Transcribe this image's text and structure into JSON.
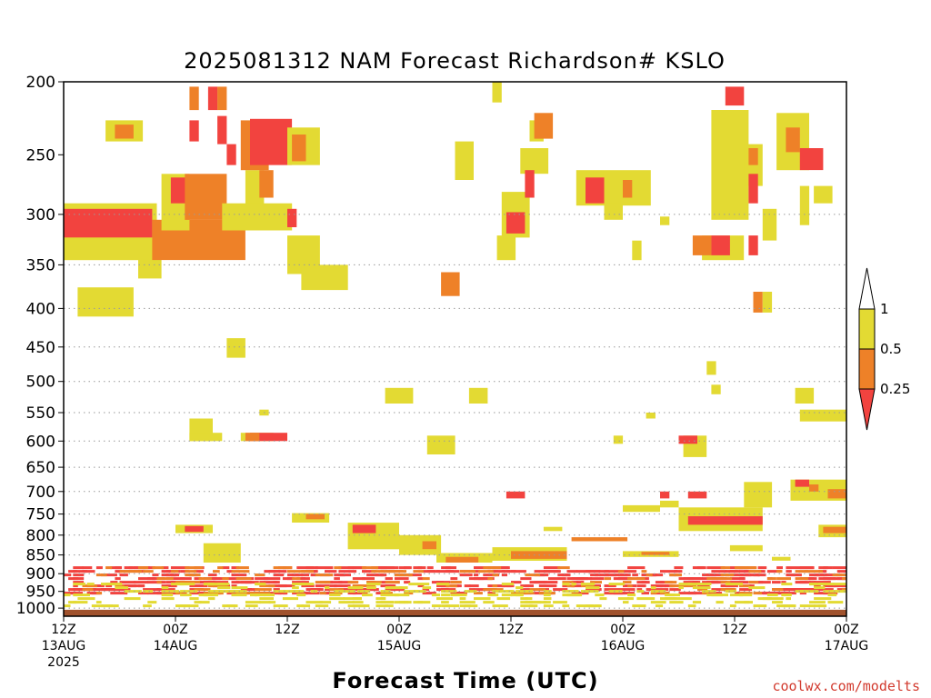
{
  "chart_data": {
    "type": "heatmap",
    "title": "2025081312 NAM Forecast Richardson# KSLO",
    "xlabel": "Forecast Time (UTC)",
    "ylabel": "",
    "credit": "coolwx.com/modelts",
    "y_axis": {
      "scale": "pressure (hPa), reversed",
      "range": [
        1025,
        200
      ],
      "grid": "dotted at each 50 hPa from 300"
    },
    "y_ticks": [
      200,
      250,
      300,
      350,
      400,
      450,
      500,
      550,
      600,
      650,
      700,
      750,
      800,
      850,
      900,
      950,
      1000
    ],
    "x_axis": {
      "unit": "forecast hour",
      "range": [
        0,
        84
      ],
      "start": "2025-08-13 12Z"
    },
    "x_ticks": [
      {
        "h": 0,
        "line1": "12Z",
        "line2": "13AUG",
        "line3": "2025"
      },
      {
        "h": 12,
        "line1": "00Z",
        "line2": "14AUG",
        "line3": ""
      },
      {
        "h": 24,
        "line1": "12Z",
        "line2": "",
        "line3": ""
      },
      {
        "h": 36,
        "line1": "00Z",
        "line2": "15AUG",
        "line3": ""
      },
      {
        "h": 48,
        "line1": "12Z",
        "line2": "",
        "line3": ""
      },
      {
        "h": 60,
        "line1": "00Z",
        "line2": "16AUG",
        "line3": ""
      },
      {
        "h": 72,
        "line1": "12Z",
        "line2": "",
        "line3": ""
      },
      {
        "h": 84,
        "line1": "00Z",
        "line2": "17AUG",
        "line3": ""
      }
    ],
    "legend": {
      "placement": "right",
      "bins": [
        {
          "range": "< 0.25",
          "color": "#f2433f"
        },
        {
          "range": "0.25 - 0.5",
          "color": "#ee8128"
        },
        {
          "range": "0.5 - 1",
          "color": "#e3da33"
        },
        {
          "range": "> 1",
          "color": "#ffffff"
        }
      ],
      "labels": [
        "1",
        "0.5",
        "0.25"
      ]
    },
    "colors": {
      "low": "#f2433f",
      "mid": "#ee8128",
      "high": "#e3da33",
      "ground": "#a0522d"
    },
    "ground_below_hPa": 1005,
    "regions": [
      {
        "cat": "high",
        "h": [
          0,
          10
        ],
        "p": [
          290,
          345
        ]
      },
      {
        "cat": "low",
        "h": [
          0,
          9.5
        ],
        "p": [
          295,
          322
        ]
      },
      {
        "cat": "high",
        "h": [
          1.5,
          7.5
        ],
        "p": [
          375,
          410
        ]
      },
      {
        "cat": "high",
        "h": [
          8,
          10.5
        ],
        "p": [
          342,
          365
        ]
      },
      {
        "cat": "mid",
        "h": [
          9.5,
          19.5
        ],
        "p": [
          305,
          345
        ]
      },
      {
        "cat": "high",
        "h": [
          10.5,
          13.5
        ],
        "p": [
          265,
          315
        ]
      },
      {
        "cat": "low",
        "h": [
          11.5,
          13.5
        ],
        "p": [
          268,
          290
        ]
      },
      {
        "cat": "mid",
        "h": [
          13,
          17.5
        ],
        "p": [
          265,
          305
        ]
      },
      {
        "cat": "high",
        "h": [
          4.5,
          8.5
        ],
        "p": [
          225,
          240
        ]
      },
      {
        "cat": "mid",
        "h": [
          5.5,
          7.5
        ],
        "p": [
          228,
          238
        ]
      },
      {
        "cat": "mid",
        "h": [
          13.5,
          14.5
        ],
        "p": [
          203,
          218
        ]
      },
      {
        "cat": "low",
        "h": [
          15.5,
          16.5
        ],
        "p": [
          203,
          218
        ]
      },
      {
        "cat": "mid",
        "h": [
          16.5,
          17.5
        ],
        "p": [
          203,
          218
        ]
      },
      {
        "cat": "low",
        "h": [
          13.5,
          14.5
        ],
        "p": [
          225,
          240
        ]
      },
      {
        "cat": "low",
        "h": [
          16.5,
          17.5
        ],
        "p": [
          222,
          242
        ]
      },
      {
        "cat": "low",
        "h": [
          17.5,
          18.5
        ],
        "p": [
          242,
          258
        ]
      },
      {
        "cat": "high",
        "h": [
          19.5,
          21.5
        ],
        "p": [
          262,
          298
        ]
      },
      {
        "cat": "mid",
        "h": [
          21,
          22.5
        ],
        "p": [
          262,
          285
        ]
      },
      {
        "cat": "mid",
        "h": [
          19,
          22
        ],
        "p": [
          225,
          262
        ]
      },
      {
        "cat": "low",
        "h": [
          20,
          24.5
        ],
        "p": [
          224,
          258
        ]
      },
      {
        "cat": "high",
        "h": [
          24,
          27.5
        ],
        "p": [
          230,
          258
        ]
      },
      {
        "cat": "mid",
        "h": [
          24.5,
          26
        ],
        "p": [
          235,
          255
        ]
      },
      {
        "cat": "high",
        "h": [
          17,
          24.5
        ],
        "p": [
          290,
          315
        ]
      },
      {
        "cat": "low",
        "h": [
          24,
          25
        ],
        "p": [
          295,
          312
        ]
      },
      {
        "cat": "high",
        "h": [
          24,
          27.5
        ],
        "p": [
          320,
          360
        ]
      },
      {
        "cat": "high",
        "h": [
          25.5,
          30.5
        ],
        "p": [
          350,
          378
        ]
      },
      {
        "cat": "high",
        "h": [
          17.5,
          19.5
        ],
        "p": [
          438,
          465
        ]
      },
      {
        "cat": "high",
        "h": [
          42,
          44
        ],
        "p": [
          240,
          270
        ]
      },
      {
        "cat": "mid",
        "h": [
          40.5,
          42.5
        ],
        "p": [
          358,
          385
        ]
      },
      {
        "cat": "high",
        "h": [
          46,
          47
        ],
        "p": [
          200,
          213
        ]
      },
      {
        "cat": "high",
        "h": [
          46.5,
          48.5
        ],
        "p": [
          320,
          345
        ]
      },
      {
        "cat": "high",
        "h": [
          47,
          50
        ],
        "p": [
          280,
          322
        ]
      },
      {
        "cat": "low",
        "h": [
          47.5,
          49.5
        ],
        "p": [
          298,
          318
        ]
      },
      {
        "cat": "high",
        "h": [
          49,
          52
        ],
        "p": [
          245,
          265
        ]
      },
      {
        "cat": "high",
        "h": [
          50,
          51.5
        ],
        "p": [
          225,
          240
        ]
      },
      {
        "cat": "mid",
        "h": [
          50.5,
          52.5
        ],
        "p": [
          220,
          238
        ]
      },
      {
        "cat": "low",
        "h": [
          49.5,
          50.5
        ],
        "p": [
          262,
          285
        ]
      },
      {
        "cat": "high",
        "h": [
          55,
          63
        ],
        "p": [
          262,
          292
        ]
      },
      {
        "cat": "low",
        "h": [
          56,
          58
        ],
        "p": [
          268,
          290
        ]
      },
      {
        "cat": "mid",
        "h": [
          60,
          61
        ],
        "p": [
          270,
          285
        ]
      },
      {
        "cat": "high",
        "h": [
          58,
          60
        ],
        "p": [
          290,
          305
        ]
      },
      {
        "cat": "high",
        "h": [
          61,
          62
        ],
        "p": [
          325,
          345
        ]
      },
      {
        "cat": "high",
        "h": [
          64,
          65
        ],
        "p": [
          302,
          310
        ]
      },
      {
        "cat": "high",
        "h": [
          68.5,
          73
        ],
        "p": [
          320,
          345
        ]
      },
      {
        "cat": "mid",
        "h": [
          67.5,
          69.5
        ],
        "p": [
          320,
          340
        ]
      },
      {
        "cat": "low",
        "h": [
          69.5,
          71.5
        ],
        "p": [
          320,
          340
        ]
      },
      {
        "cat": "low",
        "h": [
          73.5,
          74.5
        ],
        "p": [
          320,
          340
        ]
      },
      {
        "cat": "high",
        "h": [
          69.5,
          73.5
        ],
        "p": [
          218,
          305
        ]
      },
      {
        "cat": "high",
        "h": [
          73,
          75
        ],
        "p": [
          242,
          275
        ]
      },
      {
        "cat": "low",
        "h": [
          71,
          73
        ],
        "p": [
          203,
          215
        ]
      },
      {
        "cat": "mid",
        "h": [
          73.5,
          74.5
        ],
        "p": [
          245,
          258
        ]
      },
      {
        "cat": "low",
        "h": [
          73.5,
          74.5
        ],
        "p": [
          265,
          290
        ]
      },
      {
        "cat": "high",
        "h": [
          75,
          76.5
        ],
        "p": [
          295,
          325
        ]
      },
      {
        "cat": "high",
        "h": [
          76.5,
          80
        ],
        "p": [
          220,
          262
        ]
      },
      {
        "cat": "mid",
        "h": [
          77.5,
          79
        ],
        "p": [
          230,
          248
        ]
      },
      {
        "cat": "low",
        "h": [
          79,
          81.5
        ],
        "p": [
          245,
          262
        ]
      },
      {
        "cat": "high",
        "h": [
          79,
          80
        ],
        "p": [
          275,
          310
        ]
      },
      {
        "cat": "high",
        "h": [
          80.5,
          82.5
        ],
        "p": [
          275,
          290
        ]
      },
      {
        "cat": "mid",
        "h": [
          74,
          75
        ],
        "p": [
          380,
          405
        ]
      },
      {
        "cat": "high",
        "h": [
          75,
          76
        ],
        "p": [
          380,
          405
        ]
      },
      {
        "cat": "high",
        "h": [
          13.5,
          16
        ],
        "p": [
          560,
          600
        ]
      },
      {
        "cat": "high",
        "h": [
          13.5,
          17
        ],
        "p": [
          585,
          600
        ]
      },
      {
        "cat": "high",
        "h": [
          19,
          22.5
        ],
        "p": [
          585,
          600
        ]
      },
      {
        "cat": "low",
        "h": [
          20,
          24
        ],
        "p": [
          585,
          600
        ]
      },
      {
        "cat": "mid",
        "h": [
          19.5,
          21
        ],
        "p": [
          585,
          600
        ]
      },
      {
        "cat": "high",
        "h": [
          21,
          22
        ],
        "p": [
          545,
          555
        ]
      },
      {
        "cat": "high",
        "h": [
          34.5,
          37.5
        ],
        "p": [
          510,
          535
        ]
      },
      {
        "cat": "high",
        "h": [
          39,
          42
        ],
        "p": [
          590,
          625
        ]
      },
      {
        "cat": "high",
        "h": [
          43.5,
          45.5
        ],
        "p": [
          510,
          535
        ]
      },
      {
        "cat": "low",
        "h": [
          47.5,
          49.5
        ],
        "p": [
          700,
          715
        ]
      },
      {
        "cat": "high",
        "h": [
          59,
          60
        ],
        "p": [
          590,
          605
        ]
      },
      {
        "cat": "high",
        "h": [
          62.5,
          63.5
        ],
        "p": [
          550,
          560
        ]
      },
      {
        "cat": "high",
        "h": [
          66.5,
          69
        ],
        "p": [
          590,
          630
        ]
      },
      {
        "cat": "low",
        "h": [
          66,
          68
        ],
        "p": [
          590,
          605
        ]
      },
      {
        "cat": "high",
        "h": [
          69,
          70
        ],
        "p": [
          470,
          490
        ]
      },
      {
        "cat": "high",
        "h": [
          69.5,
          70.5
        ],
        "p": [
          505,
          520
        ]
      },
      {
        "cat": "high",
        "h": [
          78.5,
          80.5
        ],
        "p": [
          510,
          535
        ]
      },
      {
        "cat": "high",
        "h": [
          79,
          84
        ],
        "p": [
          545,
          565
        ]
      },
      {
        "cat": "high",
        "h": [
          60,
          64
        ],
        "p": [
          730,
          745
        ]
      },
      {
        "cat": "high",
        "h": [
          64,
          66
        ],
        "p": [
          720,
          735
        ]
      },
      {
        "cat": "low",
        "h": [
          64,
          65
        ],
        "p": [
          700,
          715
        ]
      },
      {
        "cat": "low",
        "h": [
          67,
          69
        ],
        "p": [
          700,
          715
        ]
      },
      {
        "cat": "high",
        "h": [
          66,
          75
        ],
        "p": [
          735,
          790
        ]
      },
      {
        "cat": "low",
        "h": [
          67,
          75
        ],
        "p": [
          755,
          775
        ]
      },
      {
        "cat": "high",
        "h": [
          73,
          76
        ],
        "p": [
          680,
          735
        ]
      },
      {
        "cat": "high",
        "h": [
          78,
          84
        ],
        "p": [
          675,
          720
        ]
      },
      {
        "cat": "low",
        "h": [
          78.5,
          80
        ],
        "p": [
          675,
          690
        ]
      },
      {
        "cat": "mid",
        "h": [
          80,
          81
        ],
        "p": [
          685,
          700
        ]
      },
      {
        "cat": "mid",
        "h": [
          82,
          84
        ],
        "p": [
          695,
          715
        ]
      },
      {
        "cat": "high",
        "h": [
          81,
          84
        ],
        "p": [
          775,
          805
        ]
      },
      {
        "cat": "mid",
        "h": [
          81.5,
          84
        ],
        "p": [
          780,
          795
        ]
      },
      {
        "cat": "high",
        "h": [
          12,
          16
        ],
        "p": [
          775,
          795
        ]
      },
      {
        "cat": "low",
        "h": [
          13,
          15
        ],
        "p": [
          778,
          792
        ]
      },
      {
        "cat": "high",
        "h": [
          15,
          19
        ],
        "p": [
          820,
          870
        ]
      },
      {
        "cat": "high",
        "h": [
          24.5,
          28.5
        ],
        "p": [
          748,
          770
        ]
      },
      {
        "cat": "mid",
        "h": [
          26,
          28
        ],
        "p": [
          750,
          762
        ]
      },
      {
        "cat": "high",
        "h": [
          30.5,
          36
        ],
        "p": [
          770,
          835
        ]
      },
      {
        "cat": "low",
        "h": [
          31,
          33.5
        ],
        "p": [
          775,
          795
        ]
      },
      {
        "cat": "high",
        "h": [
          36,
          40.5
        ],
        "p": [
          800,
          850
        ]
      },
      {
        "cat": "mid",
        "h": [
          38.5,
          40
        ],
        "p": [
          815,
          835
        ]
      },
      {
        "cat": "high",
        "h": [
          40,
          46
        ],
        "p": [
          845,
          870
        ]
      },
      {
        "cat": "mid",
        "h": [
          41,
          44.5
        ],
        "p": [
          855,
          870
        ]
      },
      {
        "cat": "high",
        "h": [
          46,
          54
        ],
        "p": [
          830,
          865
        ]
      },
      {
        "cat": "mid",
        "h": [
          48,
          54
        ],
        "p": [
          840,
          860
        ]
      },
      {
        "cat": "high",
        "h": [
          51.5,
          53.5
        ],
        "p": [
          780,
          790
        ]
      },
      {
        "cat": "mid",
        "h": [
          54.5,
          60.5
        ],
        "p": [
          805,
          815
        ]
      },
      {
        "cat": "high",
        "h": [
          60,
          66
        ],
        "p": [
          840,
          855
        ]
      },
      {
        "cat": "mid",
        "h": [
          62,
          65
        ],
        "p": [
          842,
          850
        ]
      },
      {
        "cat": "high",
        "h": [
          71.5,
          75
        ],
        "p": [
          825,
          840
        ]
      },
      {
        "cat": "high",
        "h": [
          76,
          78
        ],
        "p": [
          855,
          865
        ]
      }
    ],
    "scatter_bands": [
      {
        "cat": "low",
        "p": [
          880,
          960
        ],
        "density": 0.32,
        "seed": 17
      },
      {
        "cat": "mid",
        "p": [
          880,
          960
        ],
        "density": 0.1,
        "seed": 29
      },
      {
        "cat": "high",
        "p": [
          925,
          990
        ],
        "density": 0.22,
        "seed": 41
      }
    ]
  }
}
